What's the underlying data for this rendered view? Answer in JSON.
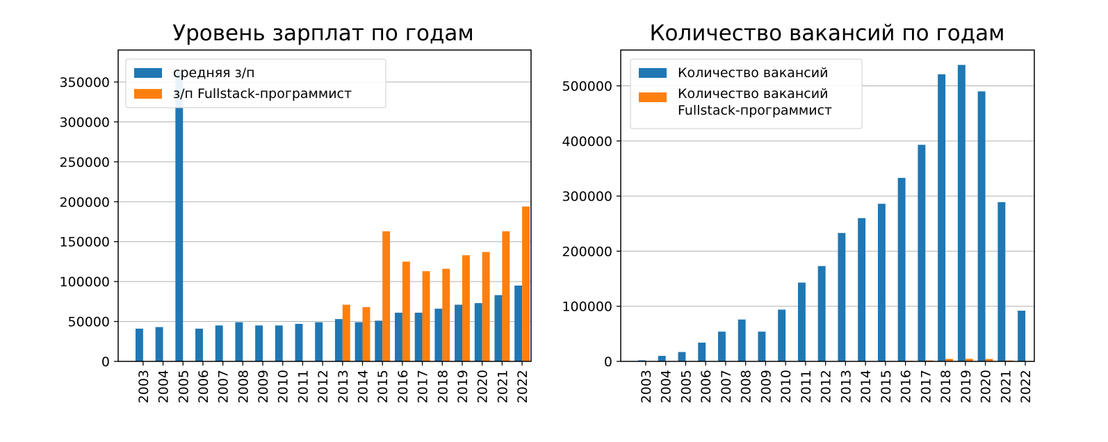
{
  "colors": {
    "blue": "#1f77b4",
    "orange": "#ff7f0e",
    "grid": "#b0b0b0",
    "frame": "#000000"
  },
  "chart_data": [
    {
      "type": "bar",
      "title": "Уровень зарплат по годам",
      "xlabel": "",
      "ylabel": "",
      "categories": [
        "2003",
        "2004",
        "2005",
        "2006",
        "2007",
        "2008",
        "2009",
        "2010",
        "2011",
        "2012",
        "2013",
        "2014",
        "2015",
        "2016",
        "2017",
        "2018",
        "2019",
        "2020",
        "2021",
        "2022"
      ],
      "series": [
        {
          "name": "средняя з/п",
          "color": "#1f77b4",
          "values": [
            41000,
            43000,
            363000,
            41000,
            45000,
            49000,
            45000,
            45000,
            47000,
            49000,
            53000,
            49000,
            51000,
            61000,
            61000,
            66000,
            71000,
            73000,
            83000,
            95000
          ]
        },
        {
          "name": "з/п Fullstack-программист",
          "color": "#ff7f0e",
          "values": [
            null,
            null,
            null,
            null,
            null,
            null,
            null,
            null,
            null,
            null,
            71000,
            68000,
            163000,
            125000,
            113000,
            116000,
            133000,
            137000,
            163000,
            194000
          ]
        }
      ],
      "ylim": [
        0,
        390000
      ],
      "yticks": [
        0,
        50000,
        100000,
        150000,
        200000,
        250000,
        300000,
        350000
      ],
      "grid": "y",
      "legend": "top-left"
    },
    {
      "type": "bar",
      "title": "Количество вакансий по годам",
      "xlabel": "",
      "ylabel": "",
      "categories": [
        "2003",
        "2004",
        "2005",
        "2006",
        "2007",
        "2008",
        "2009",
        "2010",
        "2011",
        "2012",
        "2013",
        "2014",
        "2015",
        "2016",
        "2017",
        "2018",
        "2019",
        "2020",
        "2021",
        "2022"
      ],
      "series": [
        {
          "name": "Количество вакансий",
          "color": "#1f77b4",
          "values": [
            2000,
            10000,
            17000,
            34000,
            54000,
            76000,
            54000,
            94000,
            143000,
            173000,
            233000,
            260000,
            286000,
            333000,
            393000,
            521000,
            538000,
            490000,
            289000,
            92000
          ]
        },
        {
          "name": "Количество вакансий Fullstack-программист",
          "color": "#ff7f0e",
          "values": [
            0,
            0,
            0,
            0,
            0,
            0,
            0,
            0,
            0,
            0,
            200,
            500,
            800,
            1200,
            1800,
            4500,
            4600,
            4400,
            1700,
            800
          ]
        }
      ],
      "ylim": [
        0,
        565000
      ],
      "yticks": [
        0,
        100000,
        200000,
        300000,
        400000,
        500000
      ],
      "grid": "y",
      "legend": "top-left"
    }
  ]
}
